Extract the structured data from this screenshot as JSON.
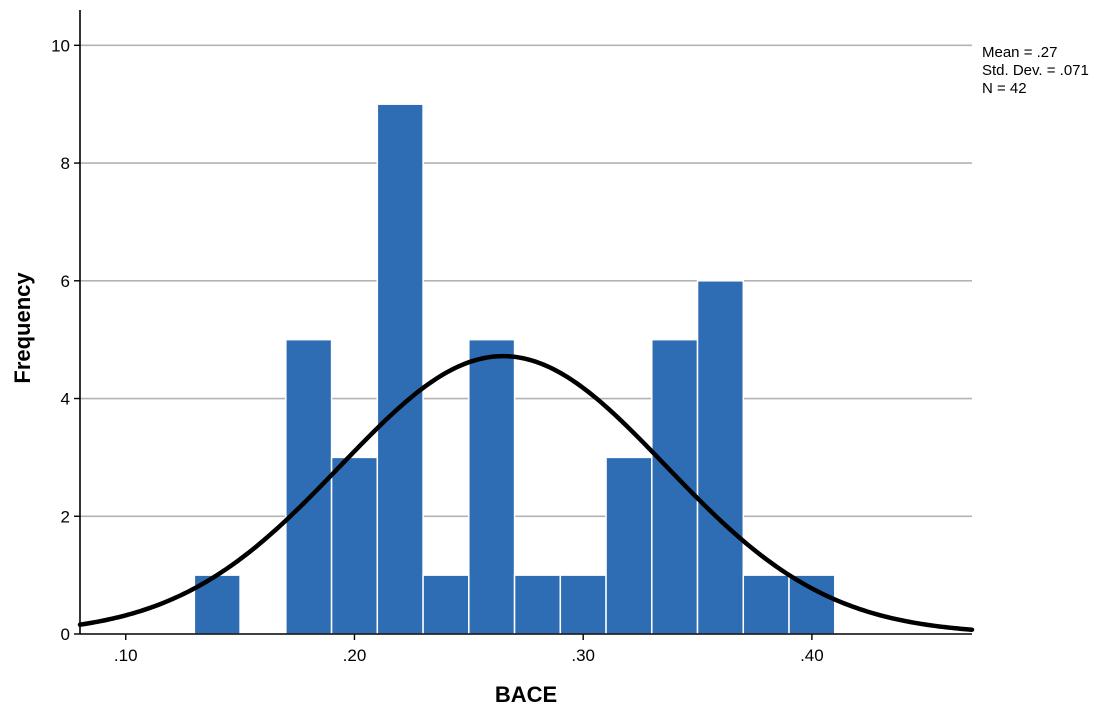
{
  "chart_data": {
    "type": "bar",
    "title": "",
    "xlabel": "BACE",
    "ylabel": "Frequency",
    "xlim": [
      0.08,
      0.47
    ],
    "ylim": [
      0,
      10.6
    ],
    "bin_width": 0.02,
    "bins": [
      {
        "start": 0.13,
        "end": 0.15,
        "count": 1
      },
      {
        "start": 0.17,
        "end": 0.19,
        "count": 5
      },
      {
        "start": 0.19,
        "end": 0.21,
        "count": 3
      },
      {
        "start": 0.21,
        "end": 0.23,
        "count": 9
      },
      {
        "start": 0.23,
        "end": 0.25,
        "count": 1
      },
      {
        "start": 0.25,
        "end": 0.27,
        "count": 5
      },
      {
        "start": 0.27,
        "end": 0.29,
        "count": 1
      },
      {
        "start": 0.29,
        "end": 0.31,
        "count": 1
      },
      {
        "start": 0.31,
        "end": 0.33,
        "count": 3
      },
      {
        "start": 0.33,
        "end": 0.35,
        "count": 5
      },
      {
        "start": 0.35,
        "end": 0.37,
        "count": 6
      },
      {
        "start": 0.37,
        "end": 0.39,
        "count": 1
      },
      {
        "start": 0.39,
        "end": 0.41,
        "count": 1
      }
    ],
    "x_ticks": [
      0.1,
      0.2,
      0.3,
      0.4
    ],
    "x_tick_labels": [
      ".10",
      ".20",
      ".30",
      ".40"
    ],
    "y_ticks": [
      0,
      2,
      4,
      6,
      8,
      10
    ],
    "y_tick_labels": [
      "0",
      "2",
      "4",
      "6",
      "8",
      "10"
    ],
    "grid": "horizontal",
    "normal_curve": {
      "mean": 0.265,
      "std_dev": 0.071,
      "n": 42,
      "bin_width": 0.02
    },
    "stats": {
      "mean_label": "Mean = .27",
      "std_label": "Std. Dev. = .071",
      "n_label": "N = 42"
    },
    "legend_placement": "top-right",
    "colors": {
      "bar": "#2e6db4",
      "bar_edge": "#ffffff",
      "curve": "#000000",
      "grid": "#b3b3b3",
      "axis": "#000000"
    }
  }
}
